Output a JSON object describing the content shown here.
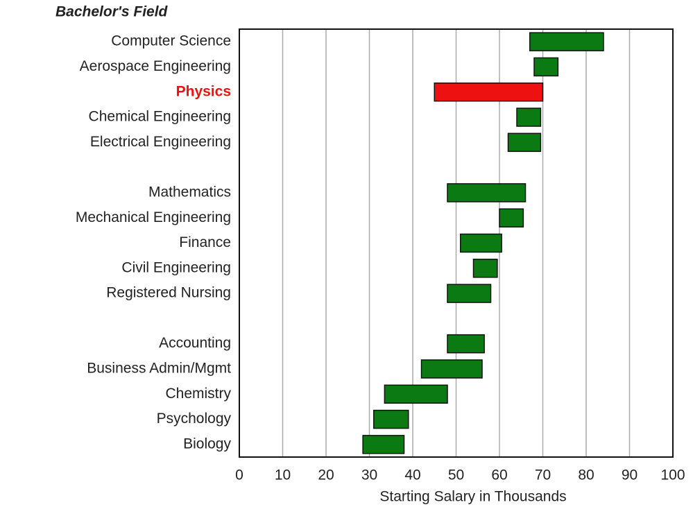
{
  "chart_data": {
    "type": "floating-bar",
    "title": "Bachelor's Field",
    "x_label": "Starting Salary in Thousands",
    "categories": [
      "Computer Science",
      "Aerospace Engineering",
      "Physics",
      "Chemical Engineering",
      "Electrical Engineering",
      null,
      "Mathematics",
      "Mechanical Engineering",
      "Finance",
      "Civil Engineering",
      "Registered Nursing",
      null,
      "Accounting",
      "Business Admin/Mgmt",
      "Chemistry",
      "Psychology",
      "Biology"
    ],
    "values": [
      [
        67,
        84
      ],
      [
        68,
        73.5
      ],
      [
        45,
        70
      ],
      [
        64,
        69.5
      ],
      [
        62,
        69.5
      ],
      null,
      [
        48,
        66
      ],
      [
        60,
        65.5
      ],
      [
        51,
        60.5
      ],
      [
        54,
        59.5
      ],
      [
        48,
        58
      ],
      null,
      [
        48,
        56.5
      ],
      [
        42,
        56
      ],
      [
        33.5,
        48
      ],
      [
        31,
        39
      ],
      [
        28.5,
        38
      ]
    ],
    "colors": [
      "#0b7a12",
      "#0b7a12",
      "#ee1111",
      "#0b7a12",
      "#0b7a12",
      null,
      "#0b7a12",
      "#0b7a12",
      "#0b7a12",
      "#0b7a12",
      "#0b7a12",
      null,
      "#0b7a12",
      "#0b7a12",
      "#0b7a12",
      "#0b7a12",
      "#0b7a12"
    ],
    "label_colors": [
      "#222222",
      "#222222",
      "#ee1111",
      "#222222",
      "#222222",
      null,
      "#222222",
      "#222222",
      "#222222",
      "#222222",
      "#222222",
      null,
      "#222222",
      "#222222",
      "#222222",
      "#222222",
      "#222222"
    ],
    "xlim": [
      0,
      100
    ],
    "xticks": [
      0,
      10,
      20,
      30,
      40,
      50,
      60,
      70,
      80,
      90,
      100
    ],
    "grid": true
  }
}
